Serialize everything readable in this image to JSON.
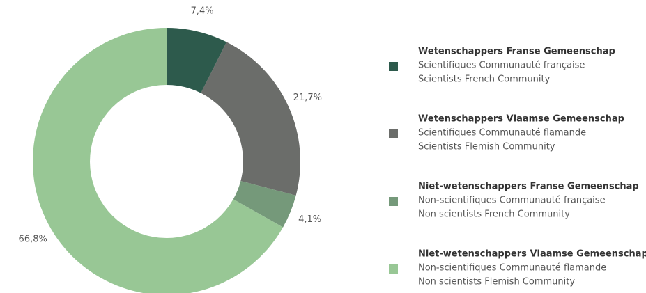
{
  "chart_data": {
    "type": "donut",
    "categories": [
      "Wetenschappers Franse Gemeenschap",
      "Wetenschappers Vlaamse Gemeenschap",
      "Niet-wetenschappers Franse Gemeenschap",
      "Niet-wetenschappers Vlaamse Gemeenschap"
    ],
    "categories_fr": [
      "Scientifiques Communauté française",
      "Scientifiques Communauté flamande",
      "Non-scientifiques Communauté française",
      "Non-scientifiques Communauté flamande"
    ],
    "categories_en": [
      "Scientists French Community",
      "Scientists Flemish Community",
      "Non scientists French Community",
      "Non scientists Flemish Community"
    ],
    "values": [
      7.4,
      21.7,
      4.1,
      66.8
    ],
    "value_labels": [
      "7,4%",
      "21,7%",
      "4,1%",
      "66,8%"
    ],
    "colors": [
      "#2d5a4c",
      "#6b6d6a",
      "#75997a",
      "#98c795"
    ]
  }
}
